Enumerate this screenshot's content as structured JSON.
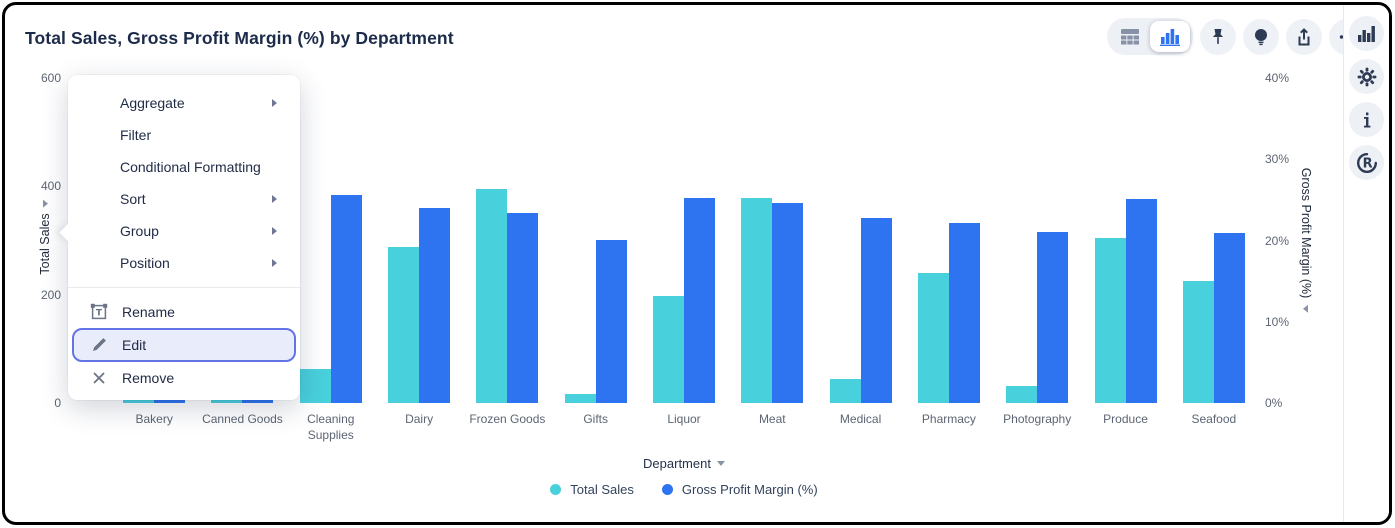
{
  "header": {
    "title": "Total Sales, Gross Profit Margin (%) by Department"
  },
  "toolbar": {
    "view_toggle": [
      {
        "name": "table-view-button",
        "icon": "table-icon",
        "active": false
      },
      {
        "name": "chart-view-button",
        "icon": "chart-bars-icon",
        "active": true
      }
    ],
    "buttons": [
      {
        "name": "pin-button",
        "icon": "pin-icon"
      },
      {
        "name": "insights-button",
        "icon": "lightbulb-icon"
      },
      {
        "name": "export-button",
        "icon": "export-icon"
      },
      {
        "name": "more-options-button",
        "icon": "ellipsis-icon"
      }
    ]
  },
  "right_rail": {
    "buttons": [
      {
        "name": "visualizations-button",
        "icon": "column-chart-icon"
      },
      {
        "name": "settings-button",
        "icon": "gear-icon"
      },
      {
        "name": "info-button",
        "icon": "info-icon"
      },
      {
        "name": "reveal-home-button",
        "icon": "reveal-logo-icon"
      }
    ]
  },
  "context_menu": {
    "sections": [
      {
        "items": [
          {
            "label": "Aggregate",
            "submenu": true
          },
          {
            "label": "Filter"
          },
          {
            "label": "Conditional Formatting"
          },
          {
            "label": "Sort",
            "submenu": true
          },
          {
            "label": "Group",
            "submenu": true
          },
          {
            "label": "Position",
            "submenu": true
          }
        ]
      },
      {
        "items": [
          {
            "label": "Rename",
            "icon": "rename-icon"
          },
          {
            "label": "Edit",
            "icon": "pencil-icon",
            "highlighted": true
          },
          {
            "label": "Remove",
            "icon": "x-icon"
          }
        ]
      }
    ]
  },
  "chart_data": {
    "type": "bar",
    "title": "Total Sales, Gross Profit Margin (%) by Department",
    "categories": [
      "Bakery",
      "Canned Goods",
      "Cleaning Supplies",
      "Dairy",
      "Frozen Goods",
      "Gifts",
      "Liquor",
      "Meat",
      "Medical",
      "Pharmacy",
      "Photography",
      "Produce",
      "Seafood"
    ],
    "series": [
      {
        "name": "Total Sales",
        "axis": "left",
        "color": "#49D0DD",
        "values": [
          150,
          170,
          63,
          288,
          395,
          17,
          197,
          378,
          44,
          240,
          31,
          305,
          225
        ]
      },
      {
        "name": "Gross Profit Margin (%)",
        "axis": "right",
        "color": "#2E74F0",
        "values": [
          24,
          23,
          25.6,
          24,
          23.4,
          20.1,
          25.2,
          24.6,
          22.8,
          22.2,
          21,
          25.1,
          20.9
        ]
      }
    ],
    "left_axis": {
      "label": "Total Sales",
      "range": [
        0,
        600
      ],
      "ticks": [
        "0",
        "200",
        "400",
        "600"
      ]
    },
    "right_axis": {
      "label": "Gross Profit Margin (%)",
      "range": [
        0,
        40
      ],
      "ticks": [
        "0%",
        "10%",
        "20%",
        "30%",
        "40%"
      ]
    },
    "x_axis": {
      "label": "Department"
    },
    "legend_position": "bottom",
    "grid": false
  },
  "legend": {
    "items": [
      {
        "label": "Total Sales",
        "color": "#49D0DD"
      },
      {
        "label": "Gross Profit Margin (%)",
        "color": "#2E74F0"
      }
    ]
  },
  "colors": {
    "accent_blue": "#2E74F0",
    "accent_teal": "#49D0DD",
    "highlight_border": "#6474E5",
    "highlight_bg": "#E9ECFB",
    "icon_dark": "#2C3A54"
  }
}
